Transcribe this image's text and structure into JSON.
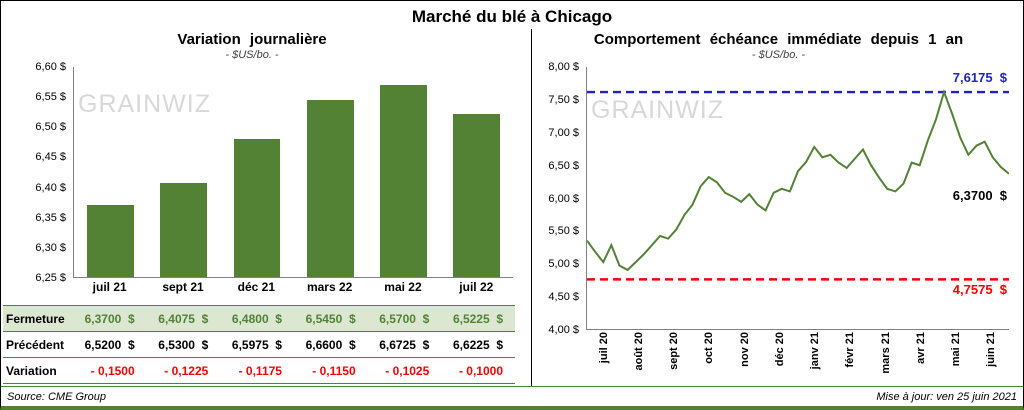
{
  "title": "Marché du blé à Chicago",
  "watermark": "GRAINWIZ",
  "colors": {
    "accent_green": "#538135",
    "bar_green": "#548235",
    "line_green": "#538135",
    "max_blue": "#2222c0",
    "neg_red": "#ff0000",
    "row_green": "#dbe7d1",
    "wm_gray": "#d8d8d8"
  },
  "left_panel": {
    "title": "Variation journalière",
    "subtitle": "- $US/bo. -",
    "table": {
      "rows": [
        {
          "key": "fermeture",
          "label": "Fermeture",
          "values": [
            "6,3700  $",
            "6,4075  $",
            "6,4800  $",
            "6,5450  $",
            "6,5700  $",
            "6,5225  $"
          ]
        },
        {
          "key": "precedent",
          "label": "Précédent",
          "values": [
            "6,5200  $",
            "6,5300  $",
            "6,5975  $",
            "6,6600  $",
            "6,6725  $",
            "6,6225  $"
          ]
        },
        {
          "key": "variation",
          "label": "Variation",
          "values": [
            "- 0,1500",
            "- 0,1225",
            "- 0,1175",
            "- 0,1150",
            "- 0,1025",
            "- 0,1000"
          ]
        }
      ]
    }
  },
  "right_panel": {
    "title": "Comportement échéance immédiate depuis 1 an",
    "subtitle": "- $US/bo. -",
    "annotations": {
      "max": "7,6175  $",
      "last": "6,3700  $",
      "min": "4,7575  $"
    }
  },
  "footer": {
    "source": "Source: CME Group",
    "updated": "Mise à jour: ven 25 juin 2021"
  },
  "chart_data": [
    {
      "type": "bar",
      "title": "Variation journalière",
      "subtitle": "- $US/bo. -",
      "categories": [
        "juil 21",
        "sept 21",
        "déc 21",
        "mars 22",
        "mai 22",
        "juil 22"
      ],
      "values": [
        6.37,
        6.4075,
        6.48,
        6.545,
        6.57,
        6.5225
      ],
      "ylim": [
        6.25,
        6.6
      ],
      "yticks": [
        "6,60 $",
        "6,55 $",
        "6,50 $",
        "6,45 $",
        "6,40 $",
        "6,35 $",
        "6,30 $",
        "6,25 $"
      ],
      "grid": false,
      "legend": false
    },
    {
      "type": "line",
      "title": "Comportement échéance immédiate depuis 1 an",
      "subtitle": "- $US/bo. -",
      "x_labels": [
        "juil 20",
        "août 20",
        "sept 20",
        "oct 20",
        "nov 20",
        "déc 20",
        "janv 21",
        "févr 21",
        "mars 21",
        "avr 21",
        "mai 21",
        "juin 21"
      ],
      "values": [
        5.35,
        5.18,
        5.02,
        5.28,
        4.97,
        4.9,
        5.02,
        5.14,
        5.28,
        5.42,
        5.38,
        5.52,
        5.74,
        5.9,
        6.18,
        6.32,
        6.24,
        6.08,
        6.02,
        5.94,
        6.06,
        5.9,
        5.81,
        6.08,
        6.14,
        6.1,
        6.41,
        6.55,
        6.78,
        6.62,
        6.66,
        6.54,
        6.46,
        6.6,
        6.74,
        6.5,
        6.31,
        6.14,
        6.1,
        6.22,
        6.54,
        6.5,
        6.88,
        7.2,
        7.6175,
        7.28,
        6.92,
        6.66,
        6.8,
        6.86,
        6.62,
        6.47,
        6.37
      ],
      "ylim": [
        4.0,
        8.0
      ],
      "yticks": [
        "8,00 $",
        "7,50 $",
        "7,00 $",
        "6,50 $",
        "6,00 $",
        "5,50 $",
        "5,00 $",
        "4,50 $",
        "4,00 $"
      ],
      "max_line": 7.6175,
      "min_line": 4.7575,
      "last_value": 6.37,
      "grid": false,
      "legend": false
    }
  ]
}
